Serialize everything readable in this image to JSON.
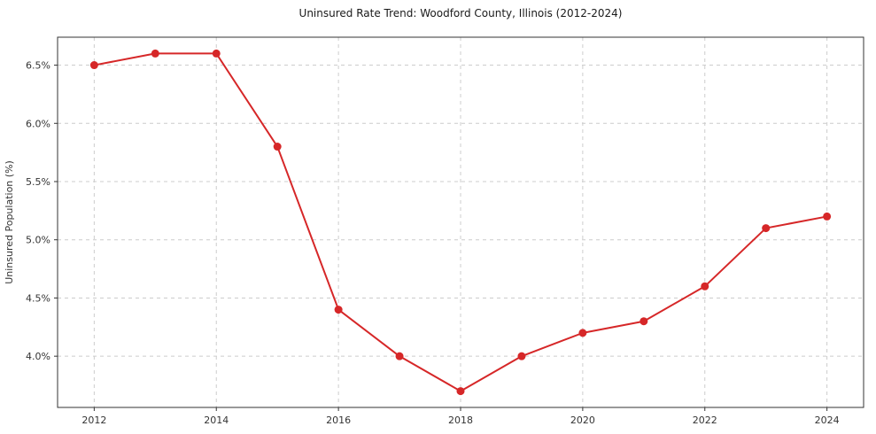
{
  "chart_data": {
    "type": "line",
    "title": "Uninsured Rate Trend: Woodford County, Illinois (2012-2024)",
    "xlabel": "",
    "ylabel": "Uninsured Population (%)",
    "x": [
      2012,
      2013,
      2014,
      2015,
      2016,
      2017,
      2018,
      2019,
      2020,
      2021,
      2022,
      2023,
      2024
    ],
    "y": [
      6.5,
      6.6,
      6.6,
      5.8,
      4.4,
      4.0,
      3.7,
      4.0,
      4.2,
      4.3,
      4.6,
      5.1,
      5.2
    ],
    "series": [
      {
        "name": "Uninsured Rate",
        "values": [
          6.5,
          6.6,
          6.6,
          5.8,
          4.4,
          4.0,
          3.7,
          4.0,
          4.2,
          4.3,
          4.6,
          5.1,
          5.2
        ]
      }
    ],
    "xlim": [
      2011.4,
      2024.6
    ],
    "ylim": [
      3.56,
      6.74
    ],
    "xticks": [
      2012,
      2014,
      2016,
      2018,
      2020,
      2022,
      2024
    ],
    "yticks": [
      4.0,
      4.5,
      5.0,
      5.5,
      6.0,
      6.5
    ],
    "ytick_suffix": "%",
    "grid": true,
    "grid_style": "dashed",
    "legend": "none",
    "colors": {
      "line": "#d62728",
      "marker": "#d62728",
      "grid": "#cccccc",
      "spine": "#333333",
      "text": "#333333",
      "background": "#ffffff"
    }
  }
}
